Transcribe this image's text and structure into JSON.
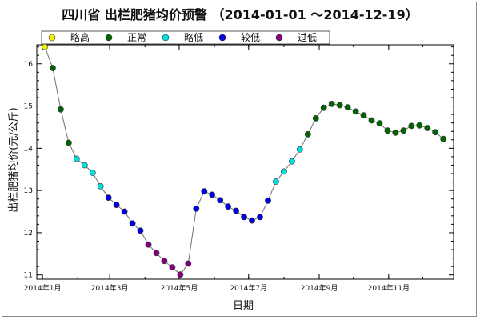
{
  "chart_data": {
    "type": "scatter",
    "title": "四川省 出栏肥猪均价预警 （2014-01-01 ～2014-12-19）",
    "xlabel": "日期",
    "ylabel": "出栏肥猪均价(元/公斤)",
    "ylim": [
      10.9,
      16.45
    ],
    "xlim": [
      "2013-12-27",
      "2014-12-28"
    ],
    "y_ticks": [
      11,
      12,
      13,
      14,
      15,
      16
    ],
    "x_ticks": [
      {
        "date": "2014-01-01",
        "label": "2014年1月"
      },
      {
        "date": "2014-03-01",
        "label": "2014年3月"
      },
      {
        "date": "2014-05-01",
        "label": "2014年5月"
      },
      {
        "date": "2014-07-01",
        "label": "2014年7月"
      },
      {
        "date": "2014-09-01",
        "label": "2014年9月"
      },
      {
        "date": "2014-11-01",
        "label": "2014年11月"
      }
    ],
    "grid": false,
    "legend_position": "top",
    "line_color": "#707070",
    "categories": [
      {
        "key": "high",
        "name": "略高",
        "color": "#f0f000"
      },
      {
        "key": "normal",
        "name": "正常",
        "color": "#006400"
      },
      {
        "key": "lowish",
        "name": "略低",
        "color": "#00e0e0"
      },
      {
        "key": "low",
        "name": "较低",
        "color": "#0000e0"
      },
      {
        "key": "too_low",
        "name": "过低",
        "color": "#800080"
      }
    ],
    "points": [
      {
        "x": "2014-01-03",
        "y": 16.4,
        "c": "high"
      },
      {
        "x": "2014-01-10",
        "y": 15.9,
        "c": "normal"
      },
      {
        "x": "2014-01-17",
        "y": 14.92,
        "c": "normal"
      },
      {
        "x": "2014-01-24",
        "y": 14.13,
        "c": "normal"
      },
      {
        "x": "2014-01-31",
        "y": 13.75,
        "c": "lowish"
      },
      {
        "x": "2014-02-07",
        "y": 13.6,
        "c": "lowish"
      },
      {
        "x": "2014-02-14",
        "y": 13.42,
        "c": "lowish"
      },
      {
        "x": "2014-02-21",
        "y": 13.1,
        "c": "lowish"
      },
      {
        "x": "2014-02-28",
        "y": 12.83,
        "c": "low"
      },
      {
        "x": "2014-03-07",
        "y": 12.66,
        "c": "low"
      },
      {
        "x": "2014-03-14",
        "y": 12.5,
        "c": "low"
      },
      {
        "x": "2014-03-21",
        "y": 12.22,
        "c": "low"
      },
      {
        "x": "2014-03-28",
        "y": 12.05,
        "c": "low"
      },
      {
        "x": "2014-04-04",
        "y": 11.72,
        "c": "too_low"
      },
      {
        "x": "2014-04-11",
        "y": 11.52,
        "c": "too_low"
      },
      {
        "x": "2014-04-18",
        "y": 11.33,
        "c": "too_low"
      },
      {
        "x": "2014-04-25",
        "y": 11.18,
        "c": "too_low"
      },
      {
        "x": "2014-05-02",
        "y": 11.01,
        "c": "too_low"
      },
      {
        "x": "2014-05-09",
        "y": 11.27,
        "c": "too_low"
      },
      {
        "x": "2014-05-16",
        "y": 12.57,
        "c": "low"
      },
      {
        "x": "2014-05-23",
        "y": 12.98,
        "c": "low"
      },
      {
        "x": "2014-05-30",
        "y": 12.9,
        "c": "low"
      },
      {
        "x": "2014-06-06",
        "y": 12.77,
        "c": "low"
      },
      {
        "x": "2014-06-13",
        "y": 12.62,
        "c": "low"
      },
      {
        "x": "2014-06-20",
        "y": 12.52,
        "c": "low"
      },
      {
        "x": "2014-06-27",
        "y": 12.37,
        "c": "low"
      },
      {
        "x": "2014-07-04",
        "y": 12.29,
        "c": "low"
      },
      {
        "x": "2014-07-11",
        "y": 12.37,
        "c": "low"
      },
      {
        "x": "2014-07-18",
        "y": 12.76,
        "c": "low"
      },
      {
        "x": "2014-07-25",
        "y": 13.21,
        "c": "lowish"
      },
      {
        "x": "2014-08-01",
        "y": 13.45,
        "c": "lowish"
      },
      {
        "x": "2014-08-08",
        "y": 13.69,
        "c": "lowish"
      },
      {
        "x": "2014-08-15",
        "y": 13.97,
        "c": "lowish"
      },
      {
        "x": "2014-08-22",
        "y": 14.33,
        "c": "normal"
      },
      {
        "x": "2014-08-29",
        "y": 14.71,
        "c": "normal"
      },
      {
        "x": "2014-09-05",
        "y": 14.96,
        "c": "normal"
      },
      {
        "x": "2014-09-12",
        "y": 15.05,
        "c": "normal"
      },
      {
        "x": "2014-09-19",
        "y": 15.02,
        "c": "normal"
      },
      {
        "x": "2014-09-26",
        "y": 14.97,
        "c": "normal"
      },
      {
        "x": "2014-10-03",
        "y": 14.87,
        "c": "normal"
      },
      {
        "x": "2014-10-10",
        "y": 14.78,
        "c": "normal"
      },
      {
        "x": "2014-10-17",
        "y": 14.66,
        "c": "normal"
      },
      {
        "x": "2014-10-24",
        "y": 14.59,
        "c": "normal"
      },
      {
        "x": "2014-10-31",
        "y": 14.42,
        "c": "normal"
      },
      {
        "x": "2014-11-07",
        "y": 14.37,
        "c": "normal"
      },
      {
        "x": "2014-11-14",
        "y": 14.42,
        "c": "normal"
      },
      {
        "x": "2014-11-21",
        "y": 14.53,
        "c": "normal"
      },
      {
        "x": "2014-11-28",
        "y": 14.54,
        "c": "normal"
      },
      {
        "x": "2014-12-05",
        "y": 14.48,
        "c": "normal"
      },
      {
        "x": "2014-12-12",
        "y": 14.38,
        "c": "normal"
      },
      {
        "x": "2014-12-19",
        "y": 14.22,
        "c": "normal"
      }
    ]
  }
}
